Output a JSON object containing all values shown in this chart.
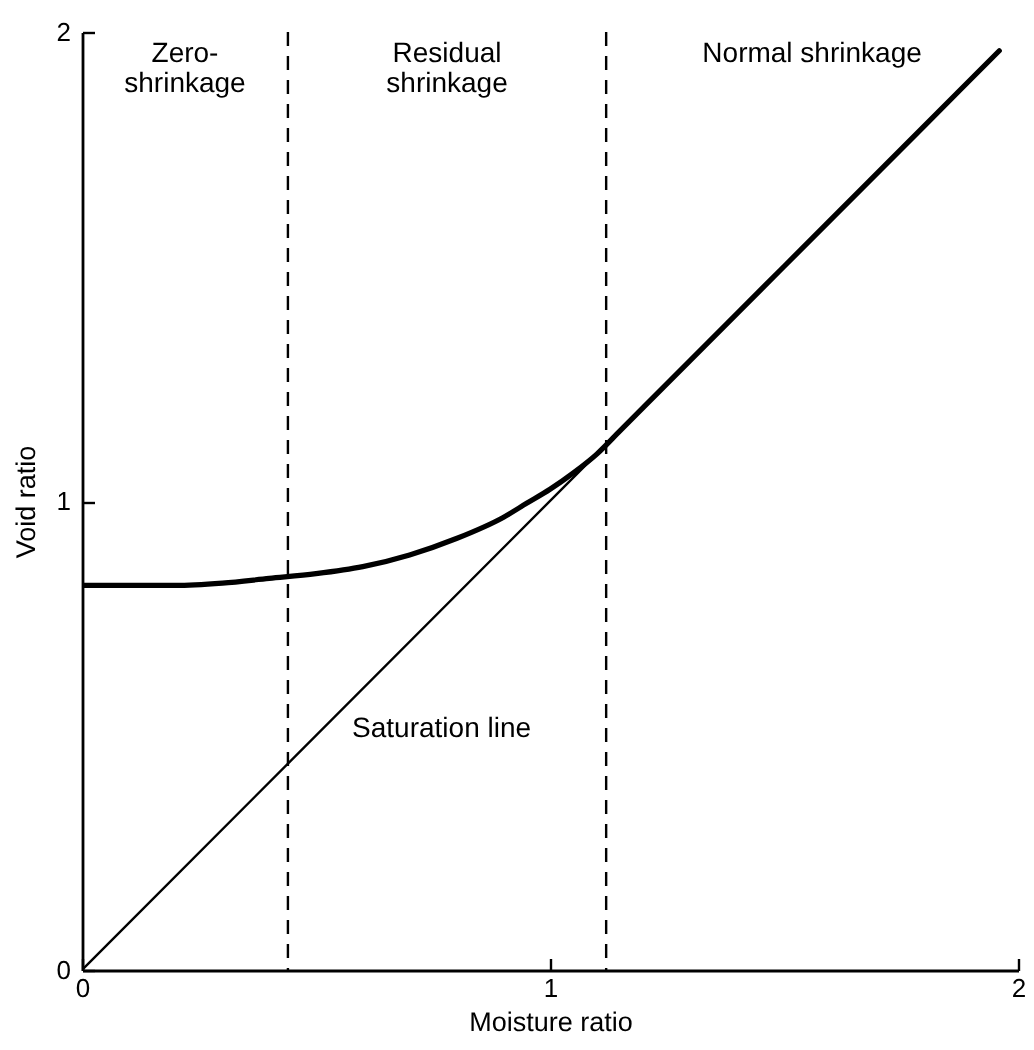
{
  "chart_data": {
    "type": "line",
    "xlabel": "Moisture ratio",
    "ylabel": "Void ratio",
    "xlim": [
      0,
      2
    ],
    "ylim": [
      0,
      2
    ],
    "xticks": [
      0,
      1,
      2
    ],
    "yticks": [
      0,
      1,
      2
    ],
    "grid": false,
    "series": [
      {
        "color": "#000000",
        "x": [
          0,
          0.1,
          0.2,
          0.3,
          0.4,
          0.5,
          0.6,
          0.7,
          0.8,
          0.9,
          0.95,
          1.0,
          1.05,
          1.1,
          1.15,
          1.2,
          1.4,
          1.6,
          1.8,
          1.96
        ],
        "values": [
          0.82,
          0.82,
          0.82,
          0.825,
          0.835,
          0.845,
          0.86,
          0.885,
          0.92,
          0.965,
          0.995,
          1.025,
          1.06,
          1.1,
          1.15,
          1.2,
          1.4,
          1.6,
          1.8,
          1.96
        ]
      },
      {
        "name": "Saturation line",
        "color": "#000000",
        "x": [
          0,
          1.12
        ],
        "values": [
          0,
          1.12
        ]
      }
    ],
    "ref_lines": [
      {
        "axis": "x",
        "value": 0.44,
        "line_style": "dashed"
      },
      {
        "axis": "x",
        "value": 1.12,
        "line_style": "dashed"
      }
    ],
    "annotations": [
      "Zero-\nshrinkage",
      "Residual\nshrinkage",
      "Normal shrinkage"
    ]
  }
}
